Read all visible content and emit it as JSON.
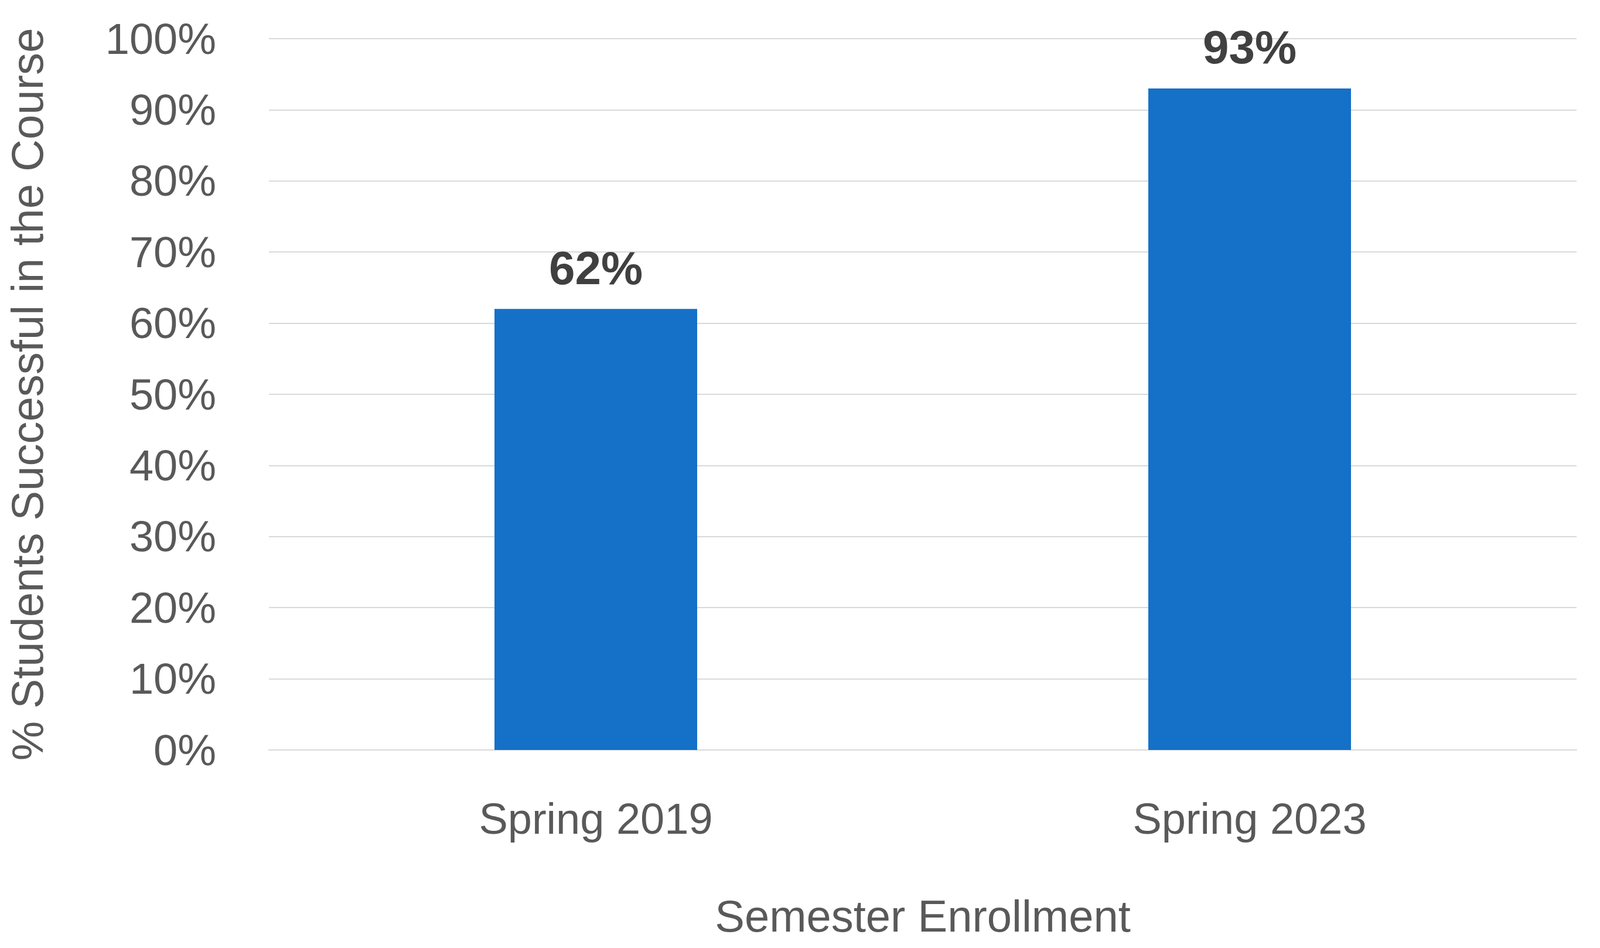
{
  "chart_data": {
    "type": "bar",
    "x_label": "Semester Enrollment",
    "y_label": "% Students Successful in the Course",
    "categories": [
      "Spring 2019",
      "Spring 2023"
    ],
    "values": [
      62,
      93
    ],
    "value_labels": [
      "62%",
      "93%"
    ],
    "data_labels": true,
    "color": "#1570c8",
    "ylim": [
      0,
      100
    ],
    "yticks": [
      {
        "value": 0,
        "label": "0%"
      },
      {
        "value": 10,
        "label": "10%"
      },
      {
        "value": 20,
        "label": "20%"
      },
      {
        "value": 30,
        "label": "30%"
      },
      {
        "value": 40,
        "label": "40%"
      },
      {
        "value": 50,
        "label": "50%"
      },
      {
        "value": 60,
        "label": "60%"
      },
      {
        "value": 70,
        "label": "70%"
      },
      {
        "value": 80,
        "label": "80%"
      },
      {
        "value": 90,
        "label": "90%"
      },
      {
        "value": 100,
        "label": "100%"
      }
    ],
    "grid": true
  }
}
